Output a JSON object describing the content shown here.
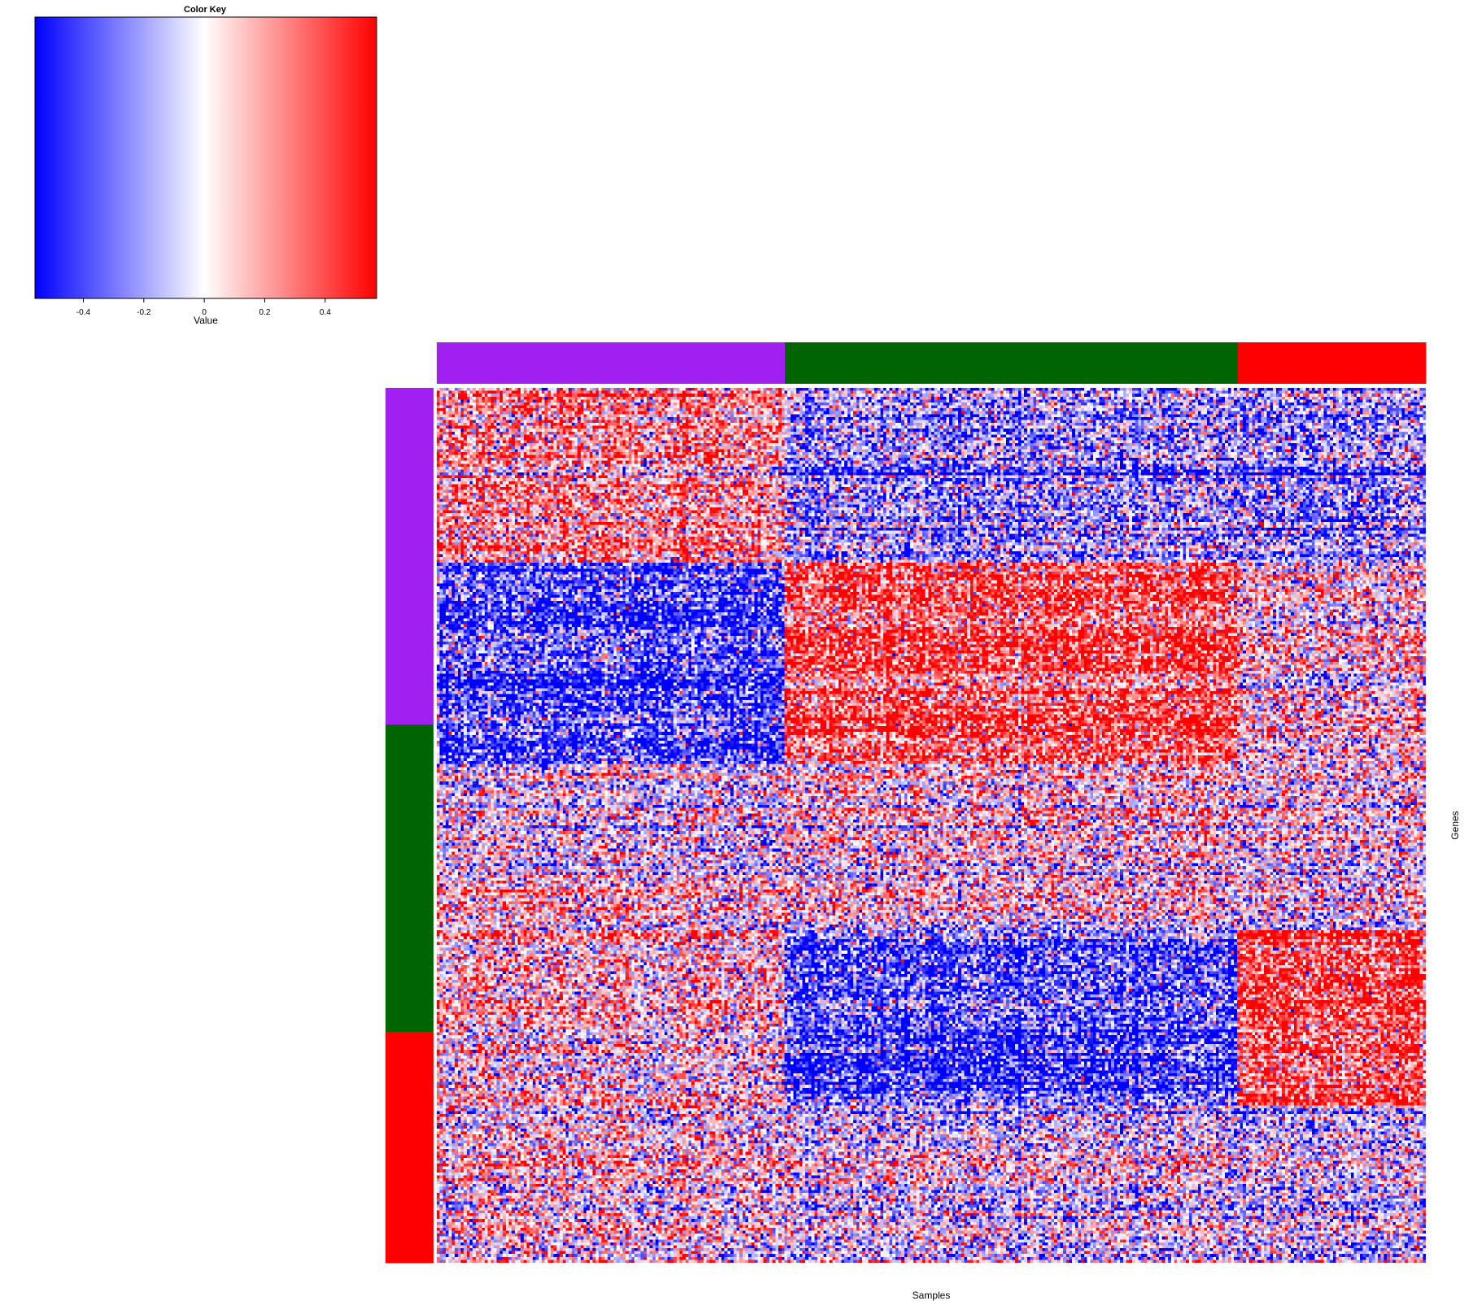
{
  "chart_data": [
    {
      "type": "legend",
      "title": "Color Key",
      "xlabel": "Value",
      "ticks": [
        -0.4,
        -0.2,
        0,
        0.2,
        0.4
      ],
      "tick_labels": [
        "-0.4",
        "-0.2",
        "0",
        "0.2",
        "0.4"
      ],
      "range": [
        -0.56,
        0.57
      ],
      "colors": {
        "low": "#0000ff",
        "mid": "#ffffff",
        "high": "#ff0000"
      }
    },
    {
      "type": "heatmap",
      "xlabel": "Samples",
      "ylabel": "Genes",
      "value_range": [
        -0.56,
        0.57
      ],
      "column_groups": [
        {
          "color": "#a020f0",
          "fraction": 0.352
        },
        {
          "color": "#006400",
          "fraction": 0.458
        },
        {
          "color": "#ff0000",
          "fraction": 0.19
        }
      ],
      "row_groups": [
        {
          "color": "#a020f0",
          "fraction": 0.385
        },
        {
          "color": "#006400",
          "fraction": 0.351
        },
        {
          "color": "#ff0000",
          "fraction": 0.264
        }
      ],
      "block_pattern": [
        {
          "rows": [
            0.0,
            0.2
          ],
          "by_column_group": [
            0.25,
            -0.2,
            -0.2
          ]
        },
        {
          "rows": [
            0.2,
            0.43
          ],
          "by_column_group": [
            -0.42,
            0.38,
            0.05
          ]
        },
        {
          "rows": [
            0.43,
            0.55
          ],
          "by_column_group": [
            -0.05,
            0.05,
            0.0
          ]
        },
        {
          "rows": [
            0.55,
            0.62
          ],
          "by_column_group": [
            0.05,
            0.0,
            -0.05
          ]
        },
        {
          "rows": [
            0.62,
            0.82
          ],
          "by_column_group": [
            0.1,
            -0.4,
            0.42
          ]
        },
        {
          "rows": [
            0.82,
            1.0
          ],
          "by_column_group": [
            0.05,
            -0.05,
            -0.1
          ]
        }
      ]
    }
  ]
}
